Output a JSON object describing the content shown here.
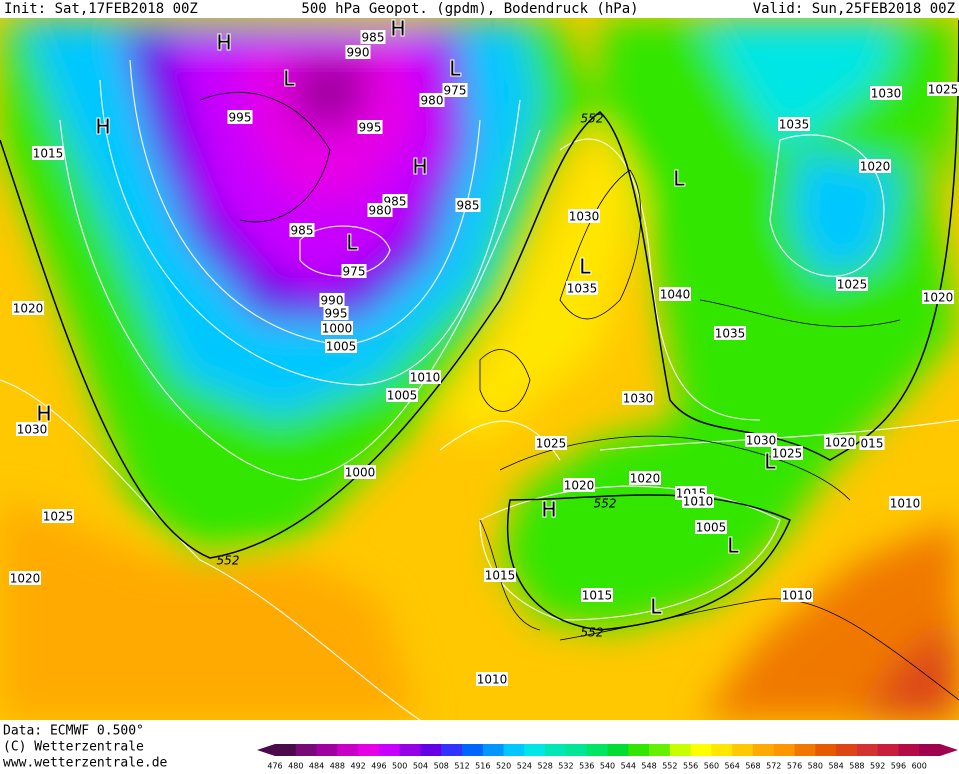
{
  "header": {
    "init": "Init: Sat,17FEB2018 00Z",
    "title": "500 hPa Geopot. (gpdm), Bodendruck (hPa)",
    "valid": "Valid: Sun,25FEB2018 00Z"
  },
  "footer": {
    "data": "Data: ECMWF   0.500°",
    "copyright": "(C) Wetterzentrale",
    "url": "www.wetterzentrale.de"
  },
  "colorbar": {
    "ticks": [
      476,
      480,
      484,
      488,
      492,
      496,
      500,
      504,
      508,
      512,
      516,
      520,
      524,
      528,
      532,
      536,
      540,
      544,
      548,
      552,
      556,
      560,
      564,
      568,
      572,
      576,
      580,
      584,
      588,
      592,
      596,
      600
    ],
    "colors": [
      "#4b0a4b",
      "#780a78",
      "#a000a0",
      "#c800c8",
      "#e600e6",
      "#c800ff",
      "#9600e6",
      "#6400e6",
      "#3232ff",
      "#0064ff",
      "#0096ff",
      "#00c8ff",
      "#00e6e6",
      "#00e6b4",
      "#00e696",
      "#00e664",
      "#00dc32",
      "#32e600",
      "#64f000",
      "#c8ff00",
      "#ffff00",
      "#ffe600",
      "#ffc800",
      "#ffaa00",
      "#ff9600",
      "#f07800",
      "#e65a00",
      "#dc4614",
      "#d23232",
      "#c81e3c",
      "#b40a46",
      "#a00050"
    ]
  },
  "isobar_labels": [
    "985",
    "990",
    "980",
    "975",
    "995",
    "995",
    "985",
    "980",
    "985",
    "985",
    "975",
    "990",
    "995",
    "1000",
    "1005",
    "1010",
    "1005",
    "1000",
    "1015",
    "1020",
    "1030",
    "1025",
    "1020",
    "552",
    "1030",
    "1035",
    "1040",
    "1035",
    "1030",
    "1025",
    "1020",
    "1020",
    "1015",
    "1010",
    "552",
    "552",
    "1005",
    "1015",
    "1015",
    "552",
    "1010",
    "1010",
    "1030",
    "1025",
    "1035",
    "1020",
    "1025",
    "1020",
    "1030",
    "1025",
    "1020",
    "015",
    "1010"
  ],
  "pressure_centers": [
    "H",
    "H",
    "H",
    "L",
    "L",
    "H",
    "L",
    "L",
    "L",
    "H",
    "H",
    "L",
    "L",
    "L"
  ]
}
